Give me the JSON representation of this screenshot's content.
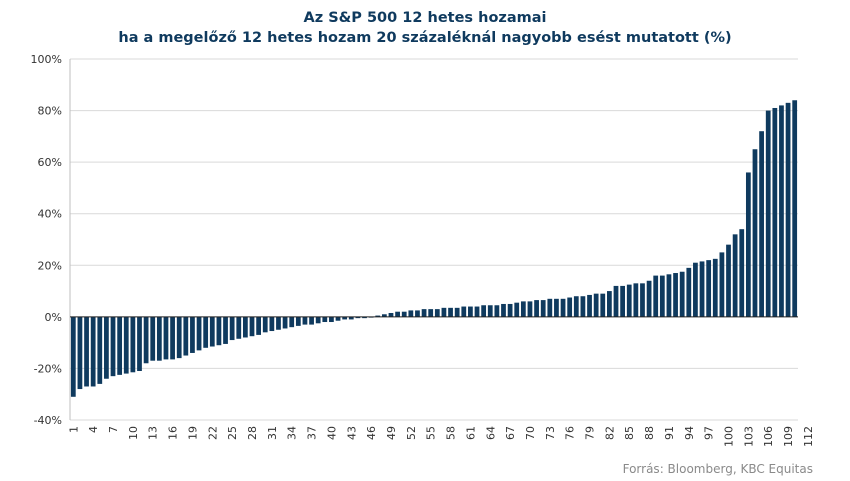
{
  "chart_data": {
    "type": "bar",
    "title": "Az S&P 500 12 hetes hozamai",
    "subtitle": "ha a megelőző 12 hetes hozam 20 százaléknál nagyobb esést mutatott (%)",
    "xlabel": "",
    "ylabel": "",
    "ylim": [
      -40,
      100
    ],
    "yticks": [
      "-40%",
      "-20%",
      "0%",
      "20%",
      "40%",
      "60%",
      "80%",
      "100%"
    ],
    "ytick_values": [
      -40,
      -20,
      0,
      20,
      40,
      60,
      80,
      100
    ],
    "xtick_labels": [
      "1",
      "4",
      "7",
      "10",
      "13",
      "16",
      "19",
      "22",
      "25",
      "28",
      "31",
      "34",
      "37",
      "40",
      "43",
      "46",
      "49",
      "52",
      "55",
      "58",
      "61",
      "64",
      "67",
      "70",
      "73",
      "76",
      "79",
      "82",
      "85",
      "88",
      "91",
      "94",
      "97",
      "100",
      "103",
      "106",
      "109",
      "112"
    ],
    "grid": true,
    "bar_color": "#0f3a5e",
    "values": [
      -31,
      -28,
      -27,
      -27,
      -26,
      -24,
      -23,
      -22.5,
      -22,
      -21.5,
      -21,
      -18,
      -17,
      -17,
      -16.5,
      -16.5,
      -16,
      -15,
      -14,
      -13,
      -12,
      -11.5,
      -11,
      -10.5,
      -9,
      -8.5,
      -8,
      -7.5,
      -7,
      -6,
      -5.5,
      -5,
      -4.5,
      -4,
      -3.5,
      -3,
      -3,
      -2.5,
      -2,
      -2,
      -1.5,
      -1,
      -1,
      -0.5,
      -0.5,
      -0.3,
      0.5,
      1,
      1.5,
      2,
      2,
      2.5,
      2.5,
      3,
      3,
      3,
      3.5,
      3.5,
      3.5,
      4,
      4,
      4,
      4.5,
      4.5,
      4.5,
      5,
      5,
      5.5,
      6,
      6,
      6.5,
      6.5,
      7,
      7,
      7,
      7.5,
      8,
      8,
      8.5,
      9,
      9,
      10,
      12,
      12,
      12.5,
      13,
      13,
      14,
      16,
      16,
      16.5,
      17,
      17.5,
      19,
      21,
      21.5,
      22,
      22.5,
      25,
      28,
      32,
      34,
      56,
      65,
      72,
      80,
      81,
      82,
      83,
      84
    ]
  },
  "source": "Forrás: Bloomberg, KBC Equitas"
}
